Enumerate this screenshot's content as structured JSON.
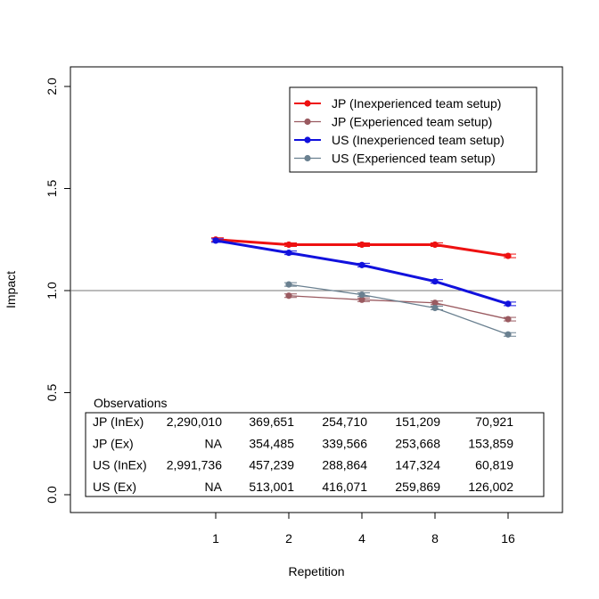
{
  "chart_data": {
    "type": "line",
    "title": "",
    "xlabel": "Repetition",
    "ylabel": "Impact",
    "x_categories": [
      "1",
      "2",
      "4",
      "8",
      "16"
    ],
    "ylim": [
      0.0,
      2.0
    ],
    "yticks": [
      "0.0",
      "0.5",
      "1.0",
      "1.5",
      "2.0"
    ],
    "reference_line": 1.0,
    "legend_position": "top-right",
    "series": [
      {
        "name": "JP (Inexperienced team setup)",
        "color": "#ee1111",
        "values": [
          1.25,
          1.225,
          1.225,
          1.225,
          1.17
        ]
      },
      {
        "name": "JP (Experienced team setup)",
        "color": "#9a5a60",
        "values": [
          null,
          0.975,
          0.955,
          0.94,
          0.86
        ]
      },
      {
        "name": "US (Inexperienced team setup)",
        "color": "#1111dd",
        "values": [
          1.245,
          1.185,
          1.125,
          1.045,
          0.935
        ]
      },
      {
        "name": "US (Experienced team setup)",
        "color": "#6a8090",
        "values": [
          null,
          1.03,
          0.98,
          0.915,
          0.785
        ]
      }
    ],
    "observations": {
      "title": "Observations",
      "rows": [
        {
          "label": "JP (InEx)",
          "values": [
            "2,290,010",
            "369,651",
            "254,710",
            "151,209",
            "70,921"
          ]
        },
        {
          "label": "JP (Ex)",
          "values": [
            "NA",
            "354,485",
            "339,566",
            "253,668",
            "153,859"
          ]
        },
        {
          "label": "US (InEx)",
          "values": [
            "2,991,736",
            "457,239",
            "288,864",
            "147,324",
            "60,819"
          ]
        },
        {
          "label": "US (Ex)",
          "values": [
            "NA",
            "513,001",
            "416,071",
            "259,869",
            "126,002"
          ]
        }
      ]
    }
  }
}
